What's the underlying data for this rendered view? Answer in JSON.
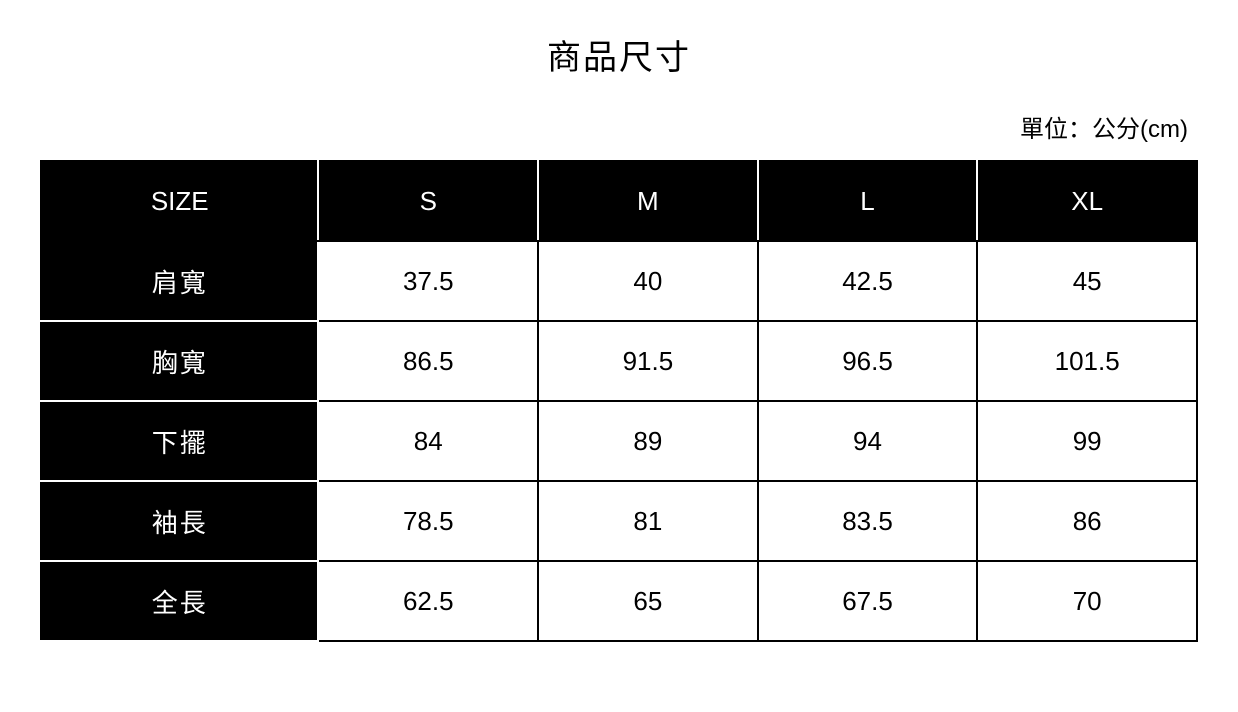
{
  "title": "商品尺寸",
  "unit_label": "單位：公分(cm)",
  "table": {
    "type": "table",
    "background_color": "#ffffff",
    "header_bg_color": "#000000",
    "header_text_color": "#ffffff",
    "rowlabel_bg_color": "#000000",
    "rowlabel_text_color": "#ffffff",
    "cell_text_color": "#000000",
    "border_color": "#000000",
    "inner_border_color": "#ffffff",
    "border_width": 2,
    "font_size": 26,
    "header_label": "SIZE",
    "columns": [
      "S",
      "M",
      "L",
      "XL"
    ],
    "column_widths_pct": [
      24,
      19,
      19,
      19,
      19
    ],
    "rows": [
      {
        "label": "肩寬",
        "values": [
          "37.5",
          "40",
          "42.5",
          "45"
        ]
      },
      {
        "label": "胸寬",
        "values": [
          "86.5",
          "91.5",
          "96.5",
          "101.5"
        ]
      },
      {
        "label": "下擺",
        "values": [
          "84",
          "89",
          "94",
          "99"
        ]
      },
      {
        "label": "袖長",
        "values": [
          "78.5",
          "81",
          "83.5",
          "86"
        ]
      },
      {
        "label": "全長",
        "values": [
          "62.5",
          "65",
          "67.5",
          "70"
        ]
      }
    ]
  }
}
